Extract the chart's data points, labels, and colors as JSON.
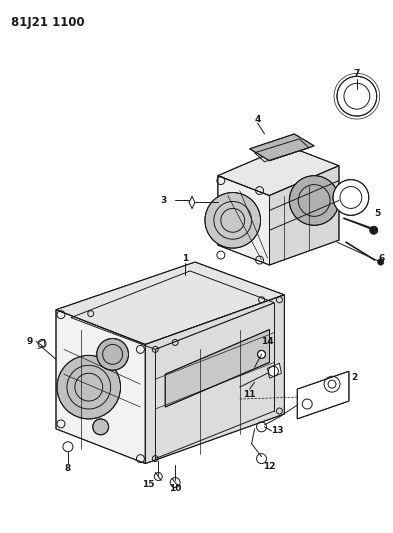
{
  "title": "81J21 1100",
  "background_color": "#ffffff",
  "fig_width": 3.93,
  "fig_height": 5.33,
  "dpi": 100,
  "line_color": "#1a1a1a",
  "label_fontsize": 6.5,
  "title_fontsize": 8.5
}
